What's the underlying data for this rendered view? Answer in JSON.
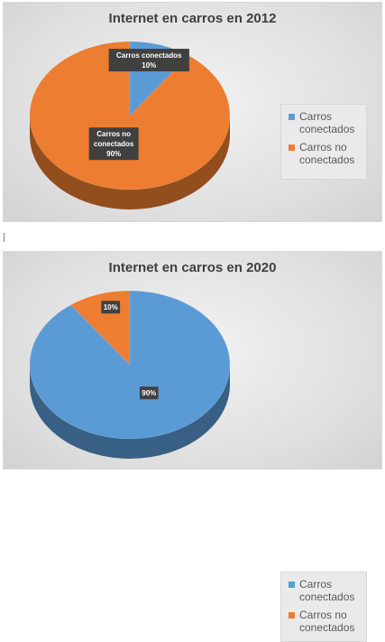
{
  "chart_data": [
    {
      "type": "pie",
      "title": "Internet en carros en 2012",
      "categories": [
        "Carros conectados",
        "Carros no conectados"
      ],
      "values": [
        10,
        90
      ],
      "value_labels": [
        "10%",
        "90%"
      ],
      "colors": [
        "#5b9bd5",
        "#ed7d31"
      ],
      "legend_position": "right"
    },
    {
      "type": "pie",
      "title": "Internet en carros en 2020",
      "categories": [
        "Carros conectados",
        "Carros no conectados"
      ],
      "values": [
        90,
        10
      ],
      "value_labels": [
        "90%",
        "10%"
      ],
      "colors": [
        "#5b9bd5",
        "#ed7d31"
      ],
      "legend_position": "right"
    }
  ]
}
